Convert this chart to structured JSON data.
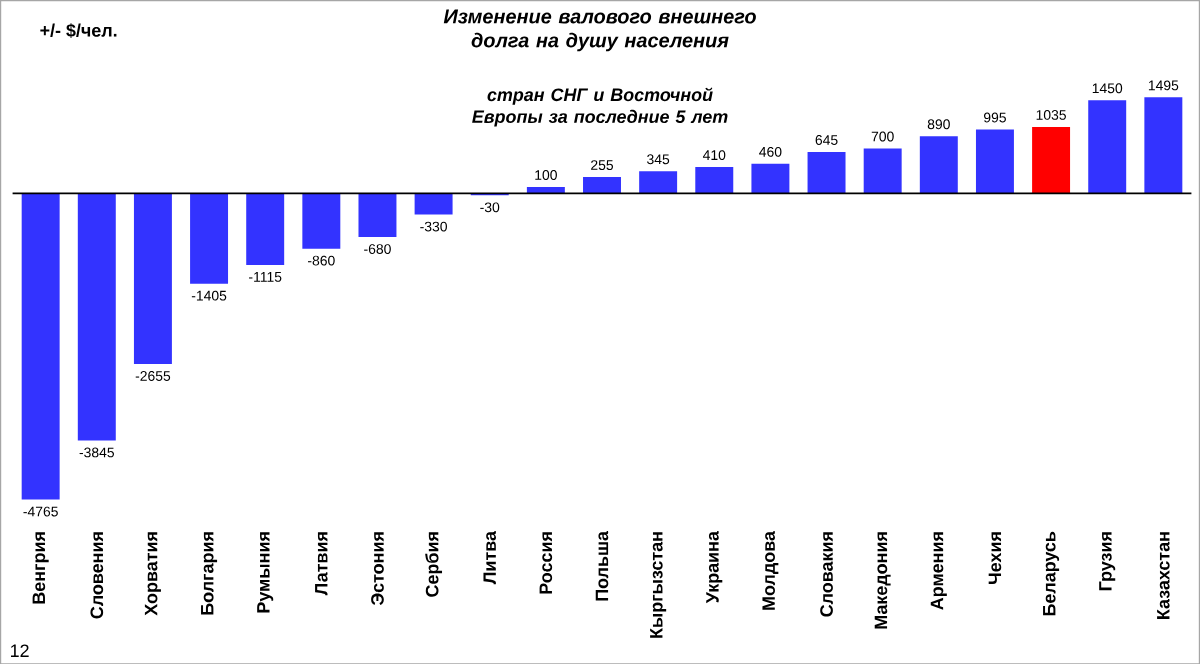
{
  "chart_data": {
    "type": "bar",
    "title": "Изменение валового внешнего долга на душу населения",
    "subtitle": "стран СНГ и Восточной Европы за последние 5 лет",
    "ylabel": "+/- $/чел.",
    "categories": [
      "Венгрия",
      "Словения",
      "Хорватия",
      "Болгария",
      "Румыния",
      "Латвия",
      "Эстония",
      "Сербия",
      "Литва",
      "Россия",
      "Польша",
      "Кыргызстан",
      "Украина",
      "Молдова",
      "Словакия",
      "Македония",
      "Армения",
      "Чехия",
      "Беларусь",
      "Грузия",
      "Казахстан"
    ],
    "values": [
      -4765,
      -3845,
      -2655,
      -1405,
      -1115,
      -860,
      -680,
      -330,
      -30,
      100,
      255,
      345,
      410,
      460,
      645,
      700,
      890,
      995,
      1035,
      1450,
      1495
    ],
    "colors": [
      "#3333ff",
      "#3333ff",
      "#3333ff",
      "#3333ff",
      "#3333ff",
      "#3333ff",
      "#3333ff",
      "#3333ff",
      "#3333ff",
      "#3333ff",
      "#3333ff",
      "#3333ff",
      "#3333ff",
      "#3333ff",
      "#3333ff",
      "#3333ff",
      "#3333ff",
      "#3333ff",
      "#ff0000",
      "#3333ff",
      "#3333ff"
    ],
    "data_labels": true,
    "annotations": [
      "12"
    ]
  }
}
